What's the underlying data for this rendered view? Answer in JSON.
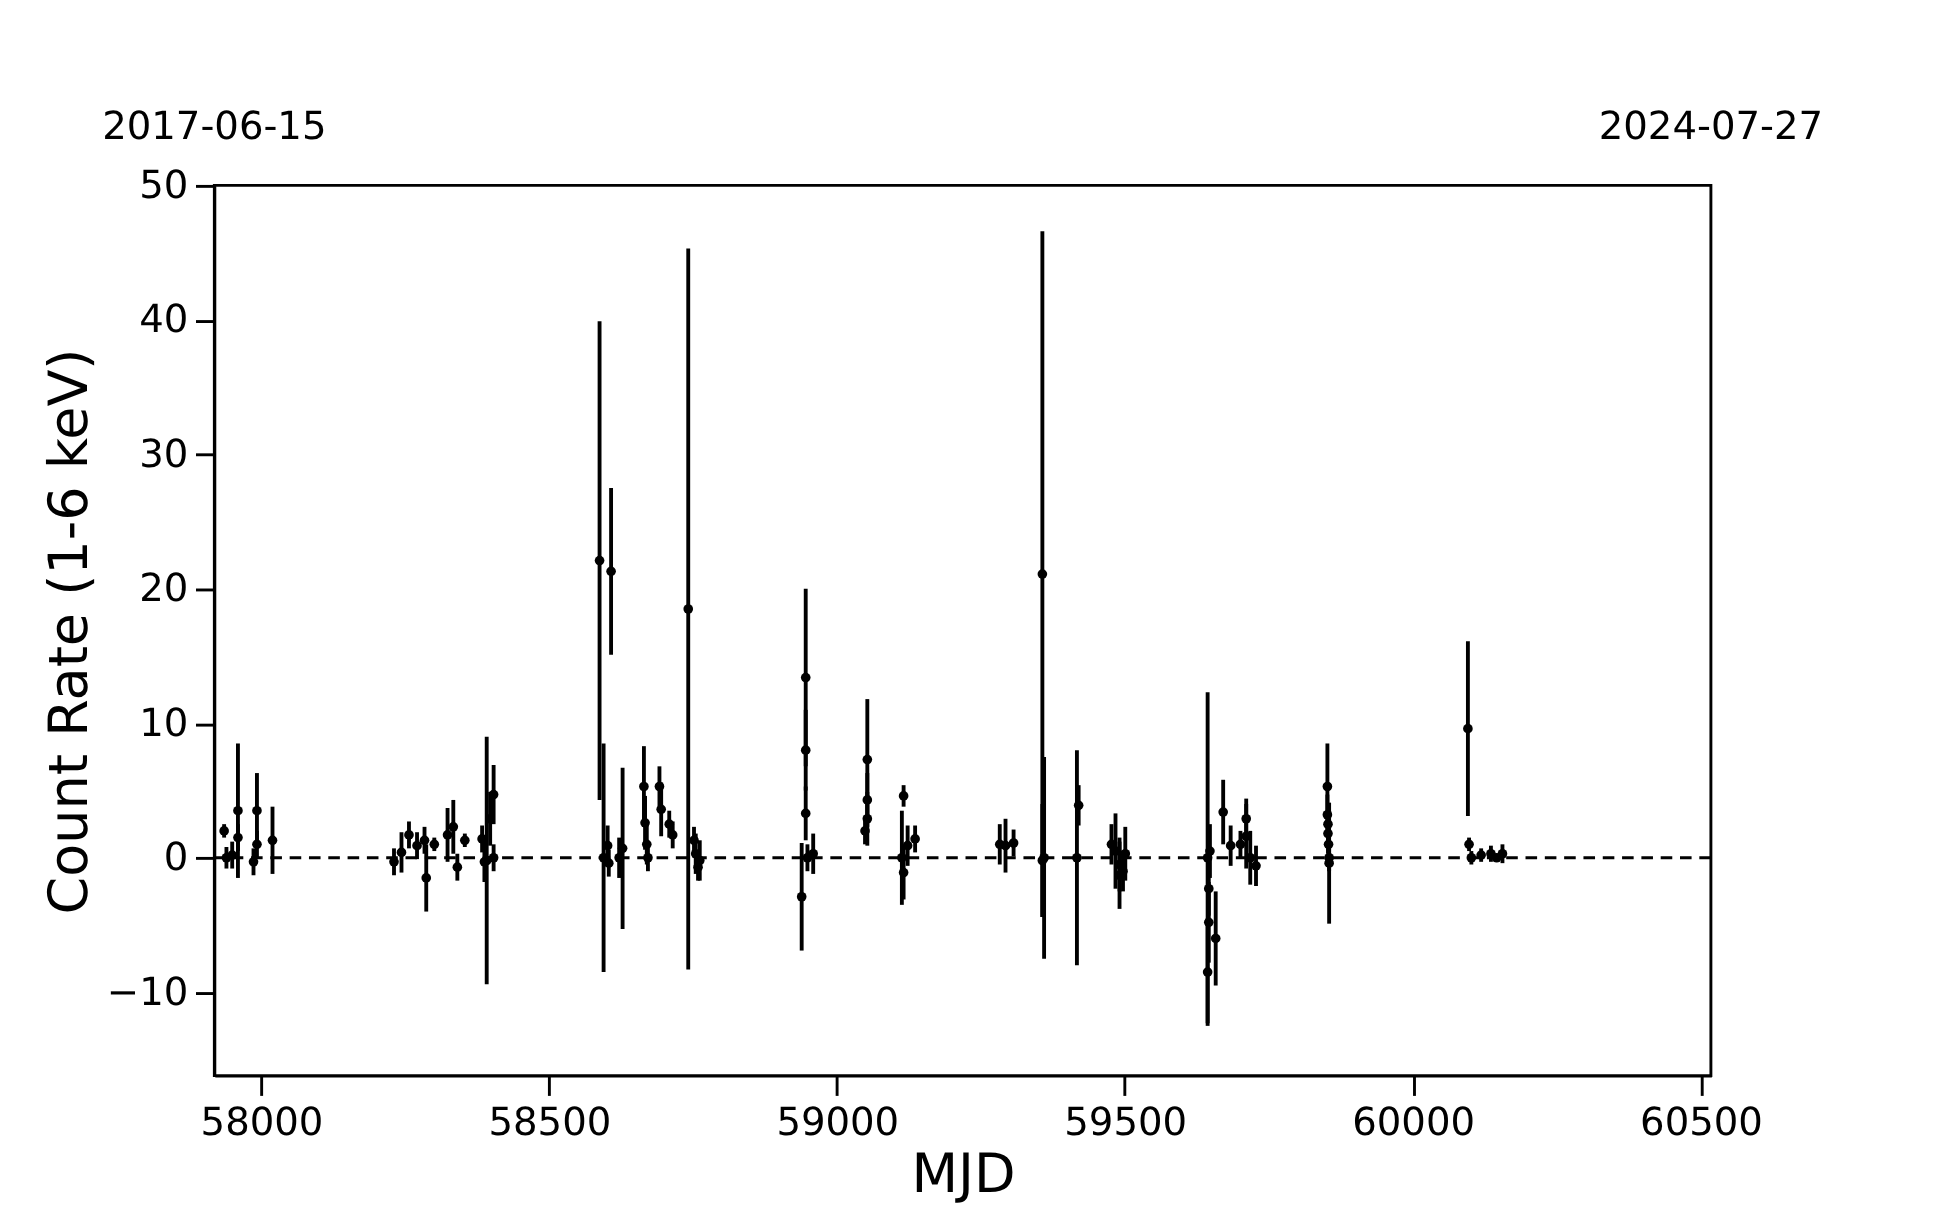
{
  "chart_data": {
    "type": "scatter",
    "xlabel": "MJD",
    "ylabel": "Count Rate (1-6 keV)",
    "x": [
      57936,
      57940,
      57950,
      57960,
      57960,
      57987,
      57993,
      57993,
      58020,
      58231,
      58244,
      58257,
      58271,
      58284,
      58287,
      58301,
      58324,
      58334,
      58341,
      58354,
      58384,
      58388,
      58398,
      58404,
      58392,
      58404,
      58588,
      58608,
      58595,
      58602,
      58604,
      58622,
      58628,
      58665,
      58667,
      58670,
      58672,
      58692,
      58695,
      58709,
      58715,
      58742,
      58752,
      58755,
      58759,
      58762,
      58939,
      58946,
      58946,
      58946,
      58949,
      58959,
      59049,
      59053,
      59053,
      59053,
      59113,
      59116,
      59116,
      59123,
      59136,
      59283,
      59293,
      59307,
      59357,
      59357,
      59360,
      59417,
      59420,
      59477,
      59484,
      59491,
      59491,
      59497,
      59501,
      59644,
      59644,
      59646,
      59646,
      59648,
      59658,
      59671,
      59684,
      59701,
      59711,
      59711,
      59718,
      59728,
      59852,
      59852,
      59853,
      59853,
      59854,
      59855,
      59855,
      60096,
      60098,
      60102,
      60119,
      60136,
      60146,
      60156
    ],
    "values": [
      2.0,
      0.0,
      0.2,
      3.5,
      1.5,
      -0.3,
      3.5,
      1.0,
      1.3,
      -0.3,
      0.4,
      1.7,
      0.9,
      1.3,
      -1.5,
      1.0,
      1.7,
      2.3,
      -0.7,
      1.3,
      1.4,
      -0.3,
      2.9,
      4.7,
      -0.2,
      0.0,
      22.1,
      21.3,
      0.0,
      0.9,
      -0.4,
      0.0,
      0.7,
      5.3,
      2.6,
      1.0,
      0.0,
      5.3,
      3.6,
      2.5,
      1.7,
      18.5,
      1.3,
      0.3,
      -0.7,
      -0.2,
      -2.9,
      13.4,
      8.0,
      3.3,
      0.0,
      0.3,
      2.0,
      7.3,
      4.3,
      2.9,
      0.0,
      4.6,
      -1.1,
      0.9,
      1.4,
      1.0,
      0.9,
      1.1,
      21.1,
      -0.2,
      0.0,
      0.0,
      3.9,
      1.0,
      0.5,
      -0.5,
      -1.3,
      -1.0,
      0.3,
      0.0,
      -8.5,
      -4.8,
      -2.3,
      0.5,
      -6.0,
      3.4,
      0.9,
      1.0,
      1.6,
      2.9,
      0.0,
      -0.6,
      5.3,
      3.2,
      2.5,
      1.8,
      1.0,
      0.0,
      -0.4,
      9.6,
      1.0,
      0.0,
      0.2,
      0.3,
      0.0,
      0.3
    ],
    "errors": [
      0.5,
      0.8,
      1.0,
      5.0,
      1.0,
      1.0,
      2.8,
      1.0,
      2.5,
      1.0,
      1.5,
      1.0,
      1.0,
      1.0,
      2.5,
      0.5,
      2.0,
      2.0,
      1.0,
      0.5,
      1.0,
      1.5,
      2.0,
      2.2,
      9.2,
      1.0,
      17.8,
      6.2,
      8.5,
      1.5,
      1.0,
      1.5,
      6.0,
      3.0,
      2.0,
      1.5,
      1.0,
      1.5,
      2.0,
      1.0,
      1.0,
      26.8,
      1.0,
      1.5,
      1.0,
      1.5,
      4.0,
      6.6,
      3.0,
      2.0,
      1.0,
      1.5,
      1.0,
      4.5,
      2.0,
      2.0,
      3.5,
      0.8,
      2.0,
      1.5,
      1.0,
      1.5,
      2.0,
      1.0,
      25.5,
      4.2,
      7.5,
      8.0,
      1.5,
      1.5,
      2.8,
      2.0,
      2.5,
      1.5,
      2.0,
      12.3,
      4.0,
      3.0,
      2.0,
      2.0,
      3.5,
      2.4,
      1.5,
      1.0,
      2.4,
      1.5,
      2.0,
      1.5,
      3.2,
      1.5,
      1.5,
      1.5,
      1.0,
      1.0,
      4.5,
      6.5,
      0.5,
      0.5,
      0.5,
      0.6,
      0.3,
      0.7
    ],
    "color": "#000000",
    "marker": "circle",
    "xlim": [
      57919,
      60518
    ],
    "xticks": [
      58000,
      58500,
      59000,
      59500,
      60000,
      60500
    ],
    "annotations": [
      "2017-06-15",
      "2024-07-27"
    ],
    "ylim": [
      -16.2,
      50
    ],
    "yticks": [
      -10,
      0,
      10,
      20,
      30,
      40,
      50
    ],
    "ref_lines": [
      {
        "axis": "y",
        "value": 0,
        "color": "#000000",
        "line_style": "dashed"
      }
    ],
    "grid": false
  }
}
